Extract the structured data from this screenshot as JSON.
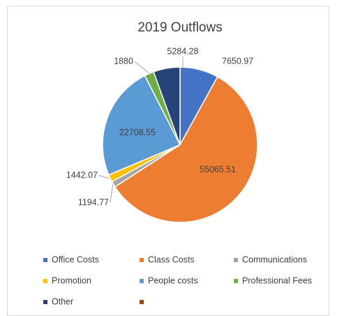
{
  "chart_data": {
    "type": "pie",
    "title": "2019 Outflows",
    "categories": [
      "Office Costs",
      "Class Costs",
      "Communications",
      "Promotion",
      "People costs",
      "Professional Fees",
      "Other",
      null
    ],
    "values": [
      7650.97,
      55065.51,
      1194.77,
      1442.07,
      22708.55,
      1880,
      5284.28,
      null
    ],
    "colors": [
      "#4472c4",
      "#ed7d31",
      "#a5a5a5",
      "#ffc000",
      "#5b9bd5",
      "#70ad47",
      "#264478",
      "#9e480e"
    ],
    "legend": "bottom"
  }
}
